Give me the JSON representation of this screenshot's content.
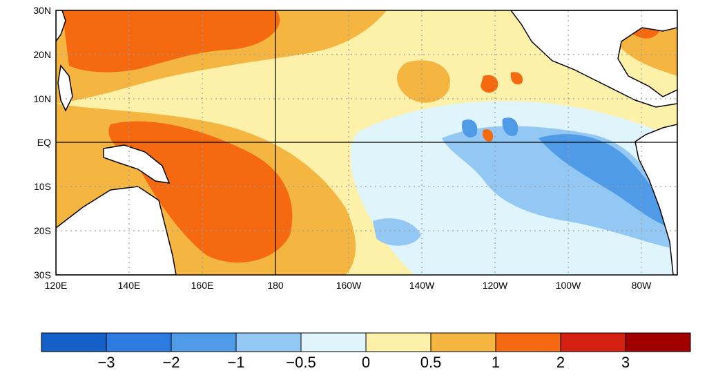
{
  "map": {
    "lat_labels": [
      "30N",
      "20N",
      "10N",
      "EQ",
      "10S",
      "20S",
      "30S"
    ],
    "lon_labels": [
      "120E",
      "140E",
      "160E",
      "180",
      "160W",
      "140W",
      "120W",
      "100W",
      "80W"
    ],
    "lat_range": [
      -30,
      30
    ],
    "lon_range_deg_east": [
      120,
      290
    ],
    "gridlines": "dotted",
    "reference_lines": [
      "EQ",
      "180"
    ]
  },
  "colorbar": {
    "colors": [
      "#1560c8",
      "#2d7be0",
      "#4f9be8",
      "#93c8f4",
      "#dff4fb",
      "#fdf0a8",
      "#f4b640",
      "#f56a10",
      "#d42010",
      "#a00000"
    ],
    "labels": [
      "−3",
      "−2",
      "−1",
      "−0.5",
      "0",
      "0.5",
      "1",
      "2",
      "3"
    ]
  }
}
